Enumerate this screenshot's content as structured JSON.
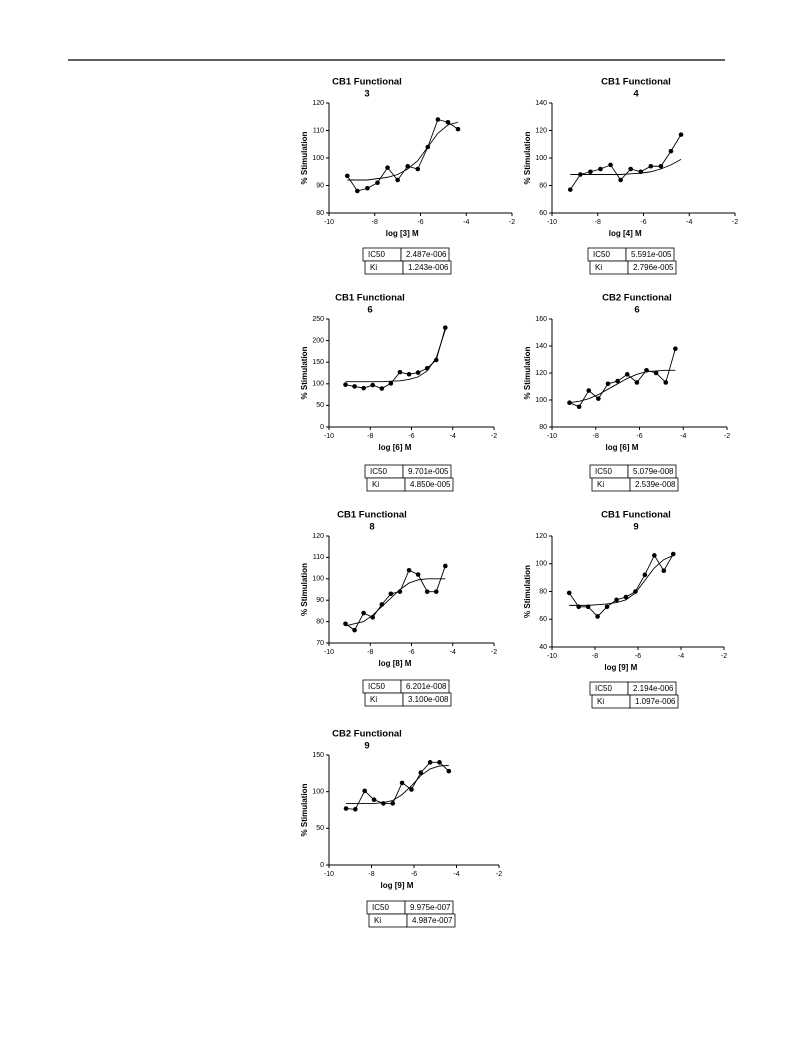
{
  "chart_data": [
    {
      "type": "line",
      "title": [
        "CB1 Functional",
        "3"
      ],
      "xlabel": "log [3] M",
      "ylabel": "% Stimulation",
      "x": [
        -9.2,
        -8.76,
        -8.32,
        -7.88,
        -7.44,
        -7.0,
        -6.56,
        -6.12,
        -5.68,
        -5.24,
        -4.8,
        -4.36
      ],
      "values": [
        93.5,
        88,
        89,
        91,
        96.5,
        92,
        97,
        96,
        104,
        114,
        113,
        110.5
      ],
      "fit_values": [
        92,
        92,
        92,
        92.5,
        93,
        94,
        96,
        99,
        104,
        109,
        112,
        113
      ],
      "xlim": [
        -10,
        -2
      ],
      "xticks": [
        -10,
        -8,
        -6,
        -4,
        -2
      ],
      "ylim": [
        80,
        120
      ],
      "yticks": [
        80,
        90,
        100,
        110,
        120
      ],
      "table": [
        [
          "IC50",
          "2.487e-006"
        ],
        [
          "Ki",
          "1.243e-006"
        ]
      ]
    },
    {
      "type": "line",
      "title": [
        "CB1 Functional",
        "4"
      ],
      "xlabel": "log [4] M",
      "ylabel": "% Stimulation",
      "x": [
        -9.2,
        -8.76,
        -8.32,
        -7.88,
        -7.44,
        -7.0,
        -6.56,
        -6.12,
        -5.68,
        -5.24,
        -4.8,
        -4.36
      ],
      "values": [
        77,
        88,
        90,
        92,
        95,
        84,
        92,
        90,
        94,
        94,
        105,
        117
      ],
      "fit_values": [
        88,
        88,
        88,
        88,
        88,
        88,
        88.5,
        89,
        90,
        92,
        95,
        99
      ],
      "xlim": [
        -10,
        -2
      ],
      "xticks": [
        -10,
        -8,
        -6,
        -4,
        -2
      ],
      "ylim": [
        60,
        140
      ],
      "yticks": [
        60,
        80,
        100,
        120,
        140
      ],
      "table": [
        [
          "IC50",
          "5.591e-005"
        ],
        [
          "Ki",
          "2.796e-005"
        ]
      ]
    },
    {
      "type": "line",
      "title": [
        "CB1 Functional",
        "6"
      ],
      "xlabel": "log [6] M",
      "ylabel": "% Stimulation",
      "x": [
        -9.2,
        -8.76,
        -8.32,
        -7.88,
        -7.44,
        -7.0,
        -6.56,
        -6.12,
        -5.68,
        -5.24,
        -4.8,
        -4.36
      ],
      "values": [
        98,
        94,
        90,
        97,
        89,
        101,
        127,
        122,
        126,
        136,
        155,
        230
      ],
      "fit_values": [
        105,
        105,
        105,
        105,
        105,
        106,
        107,
        110,
        116,
        130,
        160,
        225
      ],
      "xlim": [
        -10,
        -2
      ],
      "xticks": [
        -10,
        -8,
        -6,
        -4,
        -2
      ],
      "ylim": [
        0,
        250
      ],
      "yticks": [
        0,
        50,
        100,
        150,
        200,
        250
      ],
      "table": [
        [
          "IC50",
          "9.701e-005"
        ],
        [
          "Ki",
          "4.850e-005"
        ]
      ]
    },
    {
      "type": "line",
      "title": [
        "CB2 Functional",
        "6"
      ],
      "xlabel": "log [6] M",
      "ylabel": "% Stimulation",
      "x": [
        -9.2,
        -8.76,
        -8.32,
        -7.88,
        -7.44,
        -7.0,
        -6.56,
        -6.12,
        -5.68,
        -5.24,
        -4.8,
        -4.36
      ],
      "values": [
        98,
        95,
        107,
        101,
        112,
        114,
        119,
        113,
        122,
        120,
        113,
        138
      ],
      "fit_values": [
        98,
        99,
        101,
        104,
        108,
        112,
        116,
        119,
        121,
        121.5,
        122,
        122
      ],
      "xlim": [
        -10,
        -2
      ],
      "xticks": [
        -10,
        -8,
        -6,
        -4,
        -2
      ],
      "ylim": [
        80,
        160
      ],
      "yticks": [
        80,
        100,
        120,
        140,
        160
      ],
      "table": [
        [
          "IC50",
          "5.079e-008"
        ],
        [
          "Ki",
          "2.539e-008"
        ]
      ]
    },
    {
      "type": "line",
      "title": [
        "CB1 Functional",
        "8"
      ],
      "xlabel": "log [8] M",
      "ylabel": "% Stimulation",
      "x": [
        -9.2,
        -8.76,
        -8.32,
        -7.88,
        -7.44,
        -7.0,
        -6.56,
        -6.12,
        -5.68,
        -5.24,
        -4.8,
        -4.36
      ],
      "values": [
        79,
        76,
        84,
        82,
        88,
        93,
        94,
        104,
        102,
        94,
        94,
        106
      ],
      "fit_values": [
        78,
        79,
        80,
        83,
        87,
        91,
        95,
        98,
        99.5,
        100,
        100,
        100
      ],
      "xlim": [
        -10,
        -2
      ],
      "xticks": [
        -10,
        -8,
        -6,
        -4,
        -2
      ],
      "ylim": [
        70,
        120
      ],
      "yticks": [
        70,
        80,
        90,
        100,
        110,
        120
      ],
      "table": [
        [
          "IC50",
          "6.201e-008"
        ],
        [
          "Ki",
          "3.100e-008"
        ]
      ]
    },
    {
      "type": "line",
      "title": [
        "CB1 Functional",
        "9"
      ],
      "xlabel": "log [9] M",
      "ylabel": "% Stimulation",
      "x": [
        -9.2,
        -8.76,
        -8.32,
        -7.88,
        -7.44,
        -7.0,
        -6.56,
        -6.12,
        -5.68,
        -5.24,
        -4.8,
        -4.36
      ],
      "values": [
        79,
        69,
        69,
        62,
        69,
        74,
        76,
        80,
        92,
        106,
        95,
        107
      ],
      "fit_values": [
        70,
        70,
        70,
        70.5,
        71,
        72,
        74,
        79,
        88,
        97,
        103,
        106
      ],
      "xlim": [
        -10,
        -2
      ],
      "xticks": [
        -10,
        -8,
        -6,
        -4,
        -2
      ],
      "ylim": [
        40,
        120
      ],
      "yticks": [
        40,
        60,
        80,
        100,
        120
      ],
      "table": [
        [
          "IC50",
          "2.194e-006"
        ],
        [
          "Ki",
          "1.097e-006"
        ]
      ]
    },
    {
      "type": "line",
      "title": [
        "CB2 Functional",
        "9"
      ],
      "xlabel": "log [9] M",
      "ylabel": "% Stimulation",
      "x": [
        -9.2,
        -8.76,
        -8.32,
        -7.88,
        -7.44,
        -7.0,
        -6.56,
        -6.12,
        -5.68,
        -5.24,
        -4.8,
        -4.36
      ],
      "values": [
        77,
        76,
        101,
        89,
        84,
        84,
        112,
        103,
        126,
        140,
        140,
        128
      ],
      "fit_values": [
        84,
        84,
        84,
        84,
        85,
        88,
        96,
        108,
        122,
        131,
        135,
        136
      ],
      "xlim": [
        -10,
        -2
      ],
      "xticks": [
        -10,
        -8,
        -6,
        -4,
        -2
      ],
      "ylim": [
        0,
        150
      ],
      "yticks": [
        0,
        50,
        100,
        150
      ],
      "table": [
        [
          "IC50",
          "9.975e-007"
        ],
        [
          "Ki",
          "4.987e-007"
        ]
      ]
    }
  ]
}
